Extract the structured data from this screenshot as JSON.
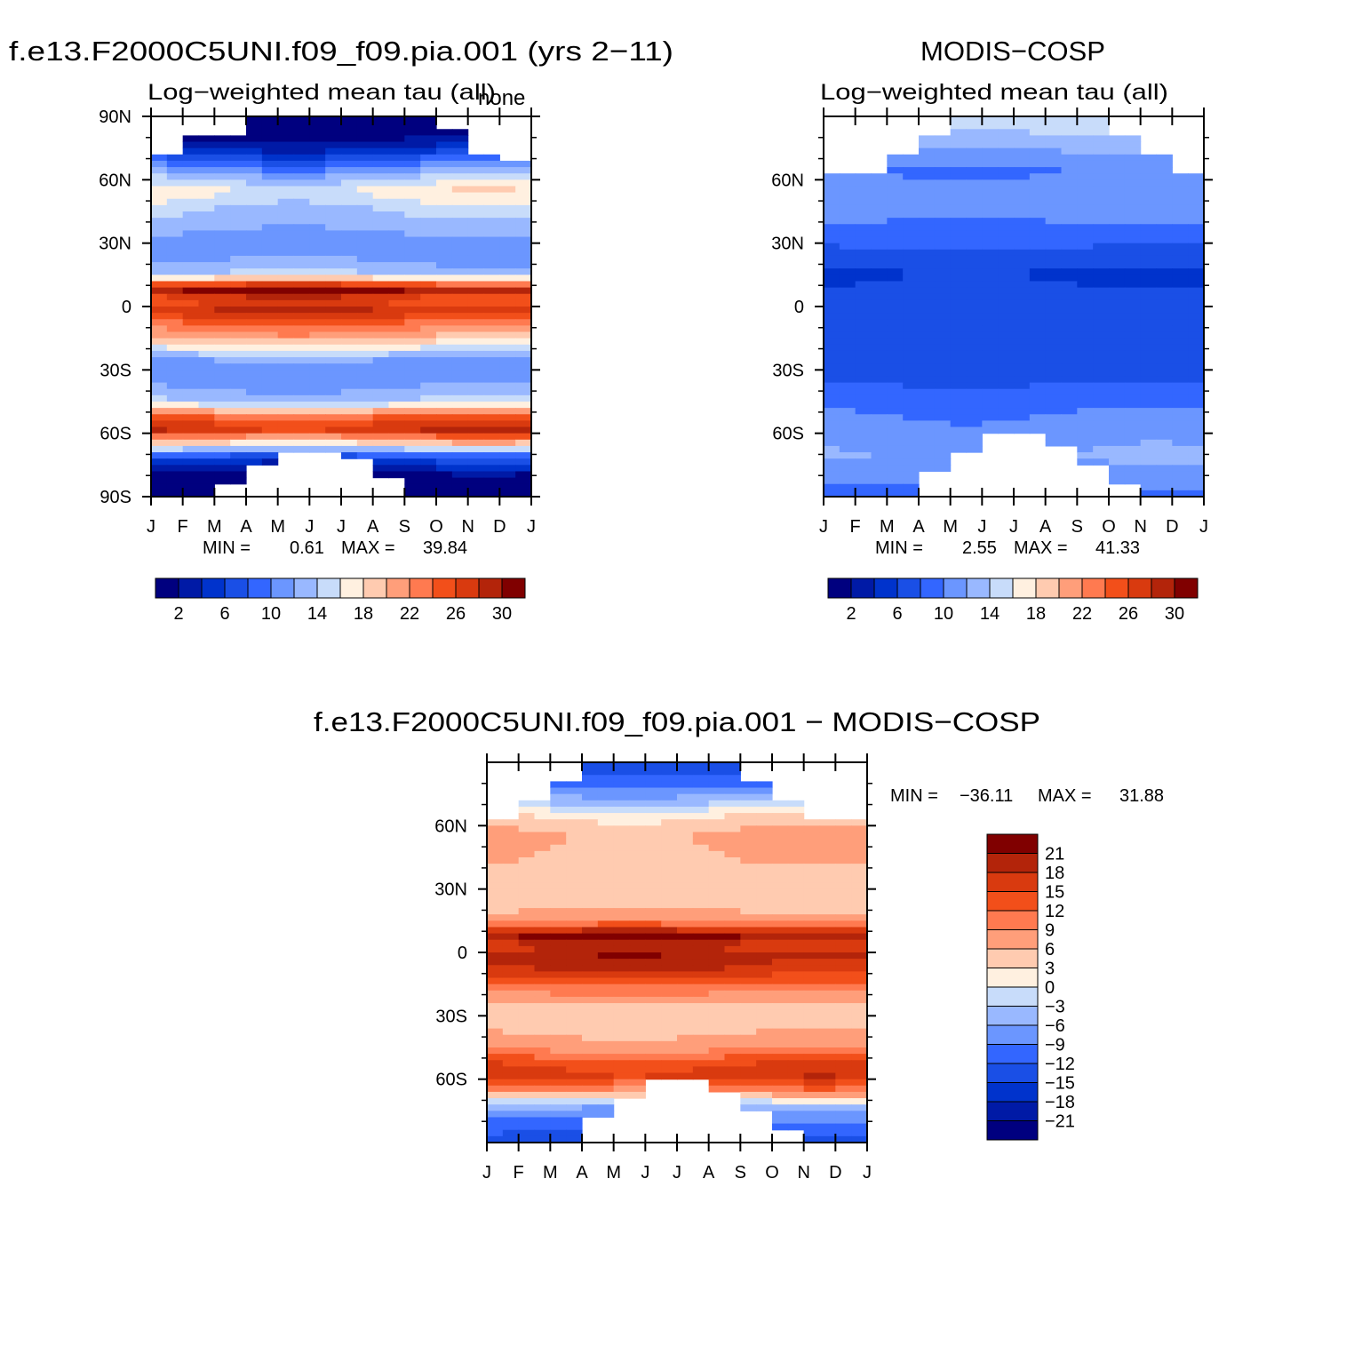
{
  "palettes": {
    "sequential": [
      "#00007f",
      "#001aa6",
      "#0033cc",
      "#1a4fe6",
      "#3366ff",
      "#6b96ff",
      "#99b8ff",
      "#c8dcfa",
      "#fff0e0",
      "#ffcbb0",
      "#ff9e7a",
      "#ff7a50",
      "#f24f1a",
      "#d93a0f",
      "#b3240a",
      "#800000"
    ],
    "diverging": [
      "#00007f",
      "#001aa6",
      "#0033cc",
      "#1a4fe6",
      "#3366ff",
      "#6b96ff",
      "#99b8ff",
      "#c8dcfa",
      "#fff0e0",
      "#ffcbb0",
      "#ff9e7a",
      "#ff7a50",
      "#f24f1a",
      "#d93a0f",
      "#b3240a",
      "#800000"
    ]
  },
  "chart_data": [
    {
      "type": "heatmap",
      "title": "f.e13.F2000C5UNI.f09_f09.pia.001 (yrs 2−11)",
      "subtitle": "Log−weighted mean tau (all)",
      "corner_label": "none",
      "x_ticks": [
        "J",
        "F",
        "M",
        "A",
        "M",
        "J",
        "J",
        "A",
        "S",
        "O",
        "N",
        "D",
        "J"
      ],
      "y_ticks": [
        "90N",
        "60N",
        "30N",
        "0",
        "30S",
        "60S",
        "90S"
      ],
      "ylim": [
        -90,
        90
      ],
      "min_label": "MIN =",
      "min_value": "0.61",
      "max_label": "MAX =",
      "max_value": "39.84",
      "colorbar_labels": [
        "2",
        "6",
        "10",
        "14",
        "18",
        "22",
        "26",
        "30"
      ],
      "levels": [
        0,
        2,
        4,
        6,
        8,
        10,
        12,
        14,
        16,
        18,
        20,
        22,
        24,
        26,
        28,
        30,
        32
      ],
      "profile": [
        {
          "lat": 90,
          "v": 0.5
        },
        {
          "lat": 80,
          "v": 1.5
        },
        {
          "lat": 75,
          "v": 4
        },
        {
          "lat": 68,
          "v": 9
        },
        {
          "lat": 62,
          "v": 13
        },
        {
          "lat": 55,
          "v": 17
        },
        {
          "lat": 45,
          "v": 14
        },
        {
          "lat": 35,
          "v": 12
        },
        {
          "lat": 25,
          "v": 11
        },
        {
          "lat": 15,
          "v": 14
        },
        {
          "lat": 8,
          "v": 31
        },
        {
          "lat": 3,
          "v": 25
        },
        {
          "lat": -2,
          "v": 28
        },
        {
          "lat": -8,
          "v": 24
        },
        {
          "lat": -15,
          "v": 20
        },
        {
          "lat": -25,
          "v": 12
        },
        {
          "lat": -35,
          "v": 11
        },
        {
          "lat": -45,
          "v": 14
        },
        {
          "lat": -52,
          "v": 24
        },
        {
          "lat": -58,
          "v": 28
        },
        {
          "lat": -65,
          "v": 18
        },
        {
          "lat": -72,
          "v": 6
        },
        {
          "lat": -80,
          "v": 1
        },
        {
          "lat": -90,
          "v": 0.5
        }
      ],
      "mask_north": [
        72,
        80,
        80,
        90,
        90,
        90,
        90,
        90,
        90,
        85,
        72,
        68,
        68
      ],
      "mask_south": [
        -90,
        -90,
        -85,
        -75,
        -68,
        -68,
        -72,
        -80,
        -90,
        -90,
        -90,
        -90,
        -90
      ]
    },
    {
      "type": "heatmap",
      "title": "MODIS−COSP",
      "subtitle": "Log−weighted mean tau (all)",
      "x_ticks": [
        "J",
        "F",
        "M",
        "A",
        "M",
        "J",
        "J",
        "A",
        "S",
        "O",
        "N",
        "D",
        "J"
      ],
      "y_ticks": [
        "60N",
        "30N",
        "0",
        "30S",
        "60S"
      ],
      "ylim": [
        -90,
        90
      ],
      "min_label": "MIN =",
      "min_value": "2.55",
      "max_label": "MAX =",
      "max_value": "41.33",
      "colorbar_labels": [
        "2",
        "6",
        "10",
        "14",
        "18",
        "22",
        "26",
        "30"
      ],
      "levels": [
        0,
        2,
        4,
        6,
        8,
        10,
        12,
        14,
        16,
        18,
        20,
        22,
        24,
        26,
        28,
        30,
        32
      ],
      "profile": [
        {
          "lat": 90,
          "v": 16
        },
        {
          "lat": 78,
          "v": 13
        },
        {
          "lat": 65,
          "v": 10
        },
        {
          "lat": 55,
          "v": 11
        },
        {
          "lat": 45,
          "v": 11
        },
        {
          "lat": 35,
          "v": 9
        },
        {
          "lat": 25,
          "v": 7.5
        },
        {
          "lat": 15,
          "v": 5.5
        },
        {
          "lat": 5,
          "v": 7
        },
        {
          "lat": -5,
          "v": 7
        },
        {
          "lat": -20,
          "v": 7
        },
        {
          "lat": -30,
          "v": 7
        },
        {
          "lat": -40,
          "v": 8.5
        },
        {
          "lat": -50,
          "v": 10
        },
        {
          "lat": -60,
          "v": 11
        },
        {
          "lat": -70,
          "v": 12
        },
        {
          "lat": -80,
          "v": 11
        },
        {
          "lat": -90,
          "v": 9
        }
      ],
      "mask_north": [
        62,
        62,
        72,
        80,
        90,
        90,
        90,
        90,
        90,
        80,
        72,
        62,
        62
      ],
      "mask_south": [
        -90,
        -90,
        -90,
        -78,
        -70,
        -60,
        -60,
        -65,
        -75,
        -85,
        -90,
        -90,
        -90
      ]
    },
    {
      "type": "heatmap",
      "title": "f.e13.F2000C5UNI.f09_f09.pia.001 − MODIS−COSP",
      "x_ticks": [
        "J",
        "F",
        "M",
        "A",
        "M",
        "J",
        "J",
        "A",
        "S",
        "O",
        "N",
        "D",
        "J"
      ],
      "y_ticks": [
        "60N",
        "30N",
        "0",
        "30S",
        "60S"
      ],
      "ylim": [
        -90,
        90
      ],
      "min_label": "MIN =",
      "min_value": "−36.11",
      "max_label": "MAX =",
      "max_value": "31.88",
      "colorbar_labels": [
        "21",
        "18",
        "15",
        "12",
        "9",
        "6",
        "3",
        "0",
        "−3",
        "−6",
        "−9",
        "−12",
        "−15",
        "−18",
        "−21"
      ],
      "levels": [
        -24,
        -21,
        -18,
        -15,
        -12,
        -9,
        -6,
        -3,
        0,
        3,
        6,
        9,
        12,
        15,
        18,
        21,
        24
      ],
      "profile": [
        {
          "lat": 90,
          "v": -14
        },
        {
          "lat": 80,
          "v": -10
        },
        {
          "lat": 72,
          "v": -4
        },
        {
          "lat": 65,
          "v": 3
        },
        {
          "lat": 55,
          "v": 7
        },
        {
          "lat": 45,
          "v": 6
        },
        {
          "lat": 35,
          "v": 4
        },
        {
          "lat": 25,
          "v": 4
        },
        {
          "lat": 15,
          "v": 8
        },
        {
          "lat": 8,
          "v": 22
        },
        {
          "lat": 3,
          "v": 17
        },
        {
          "lat": -2,
          "v": 20
        },
        {
          "lat": -8,
          "v": 18
        },
        {
          "lat": -15,
          "v": 12
        },
        {
          "lat": -25,
          "v": 5
        },
        {
          "lat": -35,
          "v": 5
        },
        {
          "lat": -45,
          "v": 8
        },
        {
          "lat": -52,
          "v": 14
        },
        {
          "lat": -58,
          "v": 17
        },
        {
          "lat": -65,
          "v": 10
        },
        {
          "lat": -72,
          "v": -4
        },
        {
          "lat": -80,
          "v": -10
        },
        {
          "lat": -90,
          "v": -14
        }
      ],
      "mask_north": [
        62,
        72,
        80,
        90,
        90,
        90,
        90,
        90,
        80,
        72,
        62,
        62,
        62
      ],
      "mask_south": [
        -90,
        -90,
        -90,
        -78,
        -70,
        -60,
        -60,
        -65,
        -75,
        -85,
        -90,
        -90,
        -90
      ]
    }
  ]
}
